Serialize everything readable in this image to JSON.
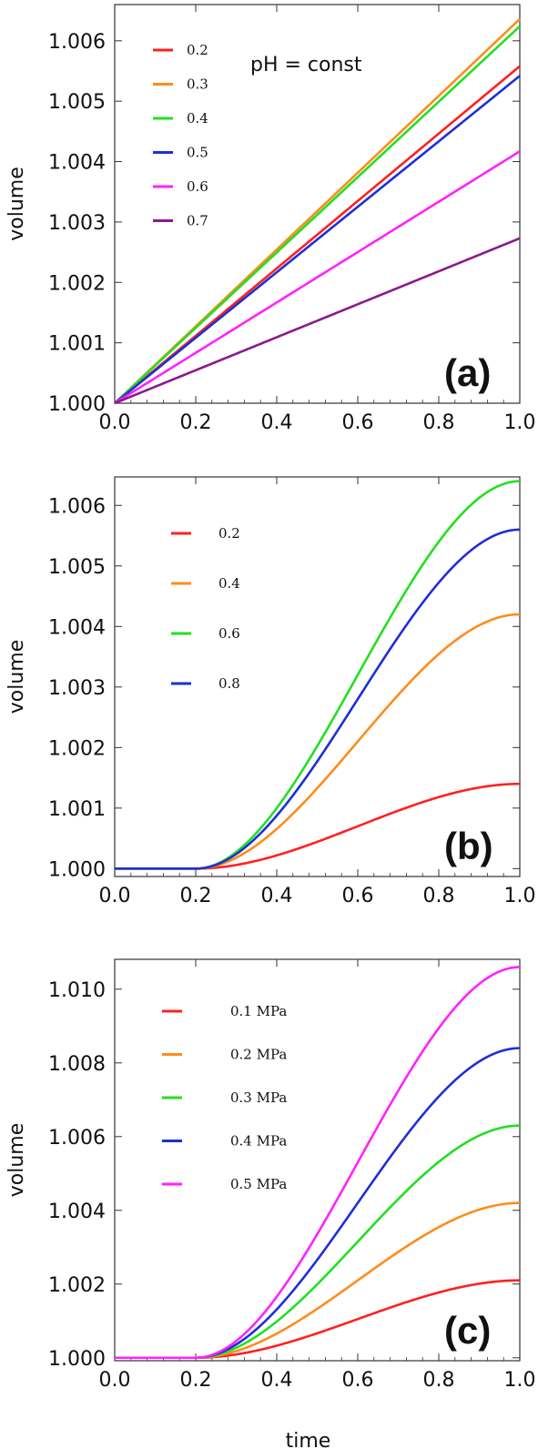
{
  "chart_data": [
    {
      "type": "line",
      "panel_label": "(a)",
      "annotation": "pH = const",
      "ylabel": "volume",
      "xlabel": "",
      "xlim": [
        0,
        1
      ],
      "ylim": [
        1.0,
        1.0066
      ],
      "x_ticks": [
        "0.0",
        "0.2",
        "0.4",
        "0.6",
        "0.8",
        "1.0"
      ],
      "y_ticks": [
        "1.000",
        "1.001",
        "1.002",
        "1.003",
        "1.004",
        "1.005",
        "1.006"
      ],
      "series": [
        {
          "name": "0.2",
          "color": "#ff2020",
          "shape": "linear",
          "final": 1.00558
        },
        {
          "name": "0.3",
          "color": "#ff8c1a",
          "shape": "linear",
          "final": 1.00636
        },
        {
          "name": "0.4",
          "color": "#22e022",
          "shape": "linear",
          "final": 1.00624
        },
        {
          "name": "0.5",
          "color": "#1e2fd6",
          "shape": "linear",
          "final": 1.00542
        },
        {
          "name": "0.6",
          "color": "#ff22ff",
          "shape": "linear",
          "final": 1.00417
        },
        {
          "name": "0.7",
          "color": "#8b1a8b",
          "shape": "linear",
          "final": 1.00273
        }
      ]
    },
    {
      "type": "line",
      "panel_label": "(b)",
      "annotation": "",
      "ylabel": "volume",
      "xlabel": "",
      "xlim": [
        0,
        1
      ],
      "ylim": [
        0.99987,
        1.00647
      ],
      "x_ticks": [
        "0.0",
        "0.2",
        "0.4",
        "0.6",
        "0.8",
        "1.0"
      ],
      "y_ticks": [
        "1.000",
        "1.001",
        "1.002",
        "1.003",
        "1.004",
        "1.005",
        "1.006"
      ],
      "series": [
        {
          "name": "0.2",
          "color": "#ff2020",
          "shape": "sigmoid",
          "final": 1.0014
        },
        {
          "name": "0.4",
          "color": "#ff8c1a",
          "shape": "sigmoid",
          "final": 1.0042
        },
        {
          "name": "0.6",
          "color": "#22e022",
          "shape": "sigmoid",
          "final": 1.0064
        },
        {
          "name": "0.8",
          "color": "#1e2fd6",
          "shape": "sigmoid",
          "final": 1.0056
        }
      ]
    },
    {
      "type": "line",
      "panel_label": "(c)",
      "annotation": "",
      "ylabel": "volume",
      "xlabel": "time",
      "xlim": [
        0,
        1
      ],
      "ylim": [
        0.99992,
        1.01081
      ],
      "x_ticks": [
        "0.0",
        "0.2",
        "0.4",
        "0.6",
        "0.8",
        "1.0"
      ],
      "y_ticks": [
        "1.000",
        "1.002",
        "1.004",
        "1.006",
        "1.008",
        "1.010"
      ],
      "series": [
        {
          "name": "0.1 MPa",
          "color": "#ff2020",
          "shape": "sigmoid",
          "final": 1.0021
        },
        {
          "name": "0.2 MPa",
          "color": "#ff8c1a",
          "shape": "sigmoid",
          "final": 1.0042
        },
        {
          "name": "0.3 MPa",
          "color": "#22e022",
          "shape": "sigmoid",
          "final": 1.0063
        },
        {
          "name": "0.4 MPa",
          "color": "#1e2fd6",
          "shape": "sigmoid",
          "final": 1.0084
        },
        {
          "name": "0.5 MPa",
          "color": "#ff22ff",
          "shape": "sigmoid",
          "final": 1.0106
        }
      ]
    }
  ]
}
